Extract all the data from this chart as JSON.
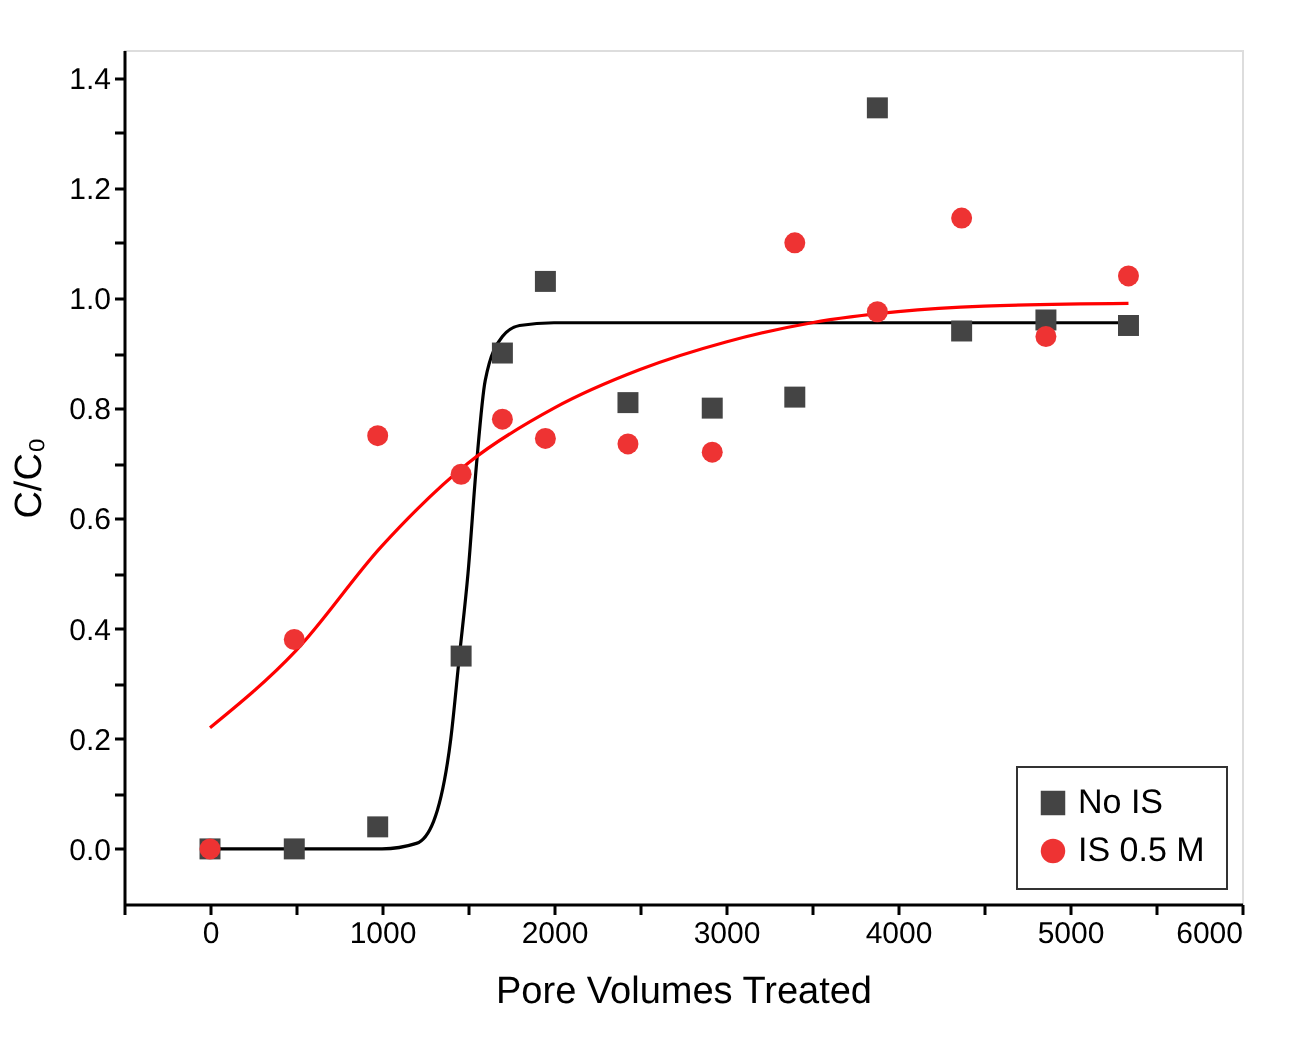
{
  "chart_data": {
    "type": "scatter",
    "xlabel": "Pore Volumes Treated",
    "ylabel": "C/C₀",
    "xlim": [
      -500,
      6000
    ],
    "ylim": [
      -0.1,
      1.45
    ],
    "xticks": [
      {
        "value": -500,
        "label": null
      },
      0,
      {
        "value": 500,
        "label": null
      },
      1000,
      {
        "value": 1500,
        "label": null
      },
      2000,
      {
        "value": 2500,
        "label": null
      },
      3000,
      {
        "value": 3500,
        "label": null
      },
      4000,
      {
        "value": 4500,
        "label": null
      },
      5000,
      {
        "value": 5500,
        "label": null
      },
      6000
    ],
    "yticks": [
      {
        "value": 0,
        "label": "0.0"
      },
      {
        "value": 0.1,
        "label": null
      },
      {
        "value": 0.2,
        "label": "0.2"
      },
      {
        "value": 0.3,
        "label": null
      },
      {
        "value": 0.4,
        "label": "0.4"
      },
      {
        "value": 0.5,
        "label": null
      },
      {
        "value": 0.6,
        "label": "0.6"
      },
      {
        "value": 0.7,
        "label": null
      },
      {
        "value": 0.8,
        "label": "0.8"
      },
      {
        "value": 0.9,
        "label": null
      },
      {
        "value": 1.0,
        "label": "1.0"
      },
      {
        "value": 1.1,
        "label": null
      },
      {
        "value": 1.2,
        "label": "1.2"
      },
      {
        "value": 1.3,
        "label": null
      },
      {
        "value": 1.4,
        "label": "1.4"
      }
    ],
    "grid": false,
    "legend": "bottom right",
    "series": [
      {
        "name": "No IS",
        "marker": "square",
        "color": "#444444",
        "x": [
          0,
          490,
          975,
          1460,
          1700,
          1950,
          2430,
          2920,
          3400,
          3880,
          4370,
          4860,
          5340
        ],
        "values": [
          0,
          0,
          0.04,
          0.35,
          0.9,
          1.03,
          0.81,
          0.8,
          0.82,
          1.345,
          0.94,
          0.96,
          0.95
        ]
      },
      {
        "name": "IS 0.5 M",
        "marker": "circle",
        "color": "#ee3333",
        "x": [
          0,
          490,
          975,
          1460,
          1700,
          1950,
          2430,
          2920,
          3400,
          3880,
          4370,
          4860,
          5340
        ],
        "values": [
          0,
          0.38,
          0.75,
          0.68,
          0.78,
          0.745,
          0.735,
          0.72,
          1.1,
          0.975,
          1.145,
          0.93,
          1.04
        ]
      },
      {
        "type": "line",
        "line_style": "solid",
        "color": "#000000",
        "x": [
          0,
          1000,
          1200,
          1300,
          1400,
          1450,
          1500,
          1550,
          1600,
          1700,
          1800,
          2000,
          5340
        ],
        "values": [
          0,
          0,
          0.01,
          0.05,
          0.2,
          0.35,
          0.5,
          0.7,
          0.85,
          0.93,
          0.95,
          0.955,
          0.955
        ]
      },
      {
        "type": "line",
        "line_style": "solid",
        "color": "#ff0000",
        "x": [
          0,
          500,
          1000,
          1500,
          2000,
          2500,
          3000,
          3500,
          4000,
          4500,
          5340
        ],
        "values": [
          0.22,
          0.36,
          0.55,
          0.7,
          0.8,
          0.87,
          0.92,
          0.955,
          0.975,
          0.985,
          0.99
        ]
      }
    ]
  }
}
